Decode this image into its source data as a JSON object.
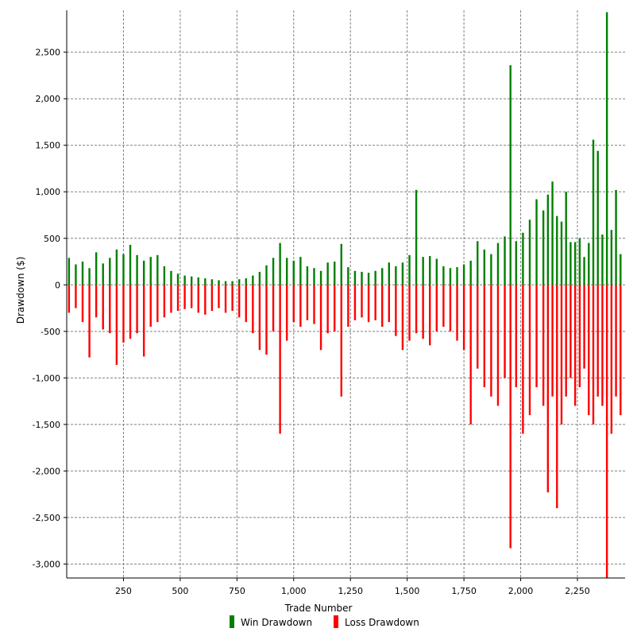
{
  "chart_data": {
    "type": "bar",
    "title": "",
    "xlabel": "Trade Number",
    "ylabel": "Drawdown ($)",
    "xlim": [
      0,
      2460
    ],
    "ylim": [
      -3150,
      2950
    ],
    "x_ticks": [
      250,
      500,
      750,
      1000,
      1250,
      1500,
      1750,
      2000,
      2250
    ],
    "x_tick_labels": [
      "250",
      "500",
      "750",
      "1,000",
      "1,250",
      "1,500",
      "1,750",
      "2,000",
      "2,250"
    ],
    "y_ticks": [
      -3000,
      -2500,
      -2000,
      -1500,
      -1000,
      -500,
      0,
      500,
      1000,
      1500,
      2000,
      2500
    ],
    "y_tick_labels": [
      "-3,000",
      "-2,500",
      "-2,000",
      "-1,500",
      "-1,000",
      "-500",
      "0",
      "500",
      "1,000",
      "1,500",
      "2,000",
      "2,500"
    ],
    "grid": true,
    "legend_position": "bottom",
    "colors": {
      "win": "#008000",
      "loss": "#ff0000",
      "grid": "#808080"
    },
    "series": [
      {
        "name": "Win Drawdown",
        "kind": "positive",
        "x": [
          10,
          40,
          70,
          100,
          130,
          160,
          190,
          220,
          250,
          280,
          310,
          340,
          370,
          400,
          430,
          460,
          490,
          520,
          550,
          580,
          610,
          640,
          670,
          700,
          730,
          760,
          790,
          820,
          850,
          880,
          910,
          940,
          970,
          1000,
          1030,
          1060,
          1090,
          1120,
          1150,
          1180,
          1210,
          1240,
          1270,
          1300,
          1330,
          1360,
          1390,
          1420,
          1450,
          1480,
          1510,
          1540,
          1570,
          1600,
          1630,
          1660,
          1690,
          1720,
          1750,
          1780,
          1810,
          1840,
          1870,
          1900,
          1930,
          1955,
          1980,
          2010,
          2040,
          2070,
          2100,
          2120,
          2140,
          2160,
          2180,
          2200,
          2220,
          2240,
          2260,
          2280,
          2300,
          2320,
          2340,
          2360,
          2380,
          2400,
          2420,
          2440
        ],
        "values": [
          290,
          220,
          250,
          180,
          350,
          230,
          290,
          380,
          330,
          430,
          320,
          260,
          300,
          320,
          200,
          150,
          120,
          100,
          90,
          80,
          70,
          60,
          50,
          40,
          40,
          60,
          70,
          100,
          140,
          210,
          290,
          450,
          290,
          260,
          300,
          200,
          180,
          150,
          240,
          250,
          440,
          190,
          150,
          140,
          130,
          150,
          180,
          240,
          200,
          240,
          320,
          1020,
          300,
          310,
          280,
          200,
          180,
          190,
          220,
          260,
          470,
          380,
          330,
          450,
          520,
          2360,
          470,
          560,
          700,
          920,
          800,
          970,
          1110,
          740,
          680,
          1000,
          460,
          460,
          500,
          300,
          450,
          1560,
          1440,
          540,
          2930,
          590,
          1020,
          330
        ]
      },
      {
        "name": "Loss Drawdown",
        "kind": "negative",
        "x": [
          10,
          40,
          70,
          100,
          130,
          160,
          190,
          220,
          250,
          280,
          310,
          340,
          370,
          400,
          430,
          460,
          490,
          520,
          550,
          580,
          610,
          640,
          670,
          700,
          730,
          760,
          790,
          820,
          850,
          880,
          910,
          940,
          970,
          1000,
          1030,
          1060,
          1090,
          1120,
          1150,
          1180,
          1210,
          1240,
          1270,
          1300,
          1330,
          1360,
          1390,
          1420,
          1450,
          1480,
          1510,
          1540,
          1570,
          1600,
          1630,
          1660,
          1690,
          1720,
          1750,
          1780,
          1810,
          1840,
          1870,
          1900,
          1930,
          1955,
          1980,
          2010,
          2040,
          2070,
          2100,
          2120,
          2140,
          2160,
          2180,
          2200,
          2220,
          2240,
          2260,
          2280,
          2300,
          2320,
          2340,
          2360,
          2380,
          2400,
          2420,
          2440
        ],
        "values": [
          -300,
          -250,
          -400,
          -780,
          -350,
          -480,
          -520,
          -860,
          -620,
          -580,
          -520,
          -770,
          -450,
          -400,
          -350,
          -300,
          -280,
          -260,
          -250,
          -300,
          -320,
          -280,
          -250,
          -300,
          -280,
          -350,
          -400,
          -520,
          -700,
          -750,
          -500,
          -1600,
          -600,
          -400,
          -450,
          -380,
          -420,
          -700,
          -520,
          -500,
          -1200,
          -450,
          -380,
          -350,
          -400,
          -380,
          -450,
          -400,
          -550,
          -700,
          -600,
          -520,
          -580,
          -650,
          -500,
          -450,
          -500,
          -600,
          -700,
          -1500,
          -900,
          -1100,
          -1200,
          -1300,
          -1000,
          -2830,
          -1100,
          -1600,
          -1400,
          -1100,
          -1300,
          -2230,
          -1200,
          -2400,
          -1500,
          -1200,
          -1000,
          -1300,
          -1100,
          -900,
          -1400,
          -1500,
          -1200,
          -1300,
          -3150,
          -1600,
          -1200,
          -1400
        ]
      }
    ]
  }
}
